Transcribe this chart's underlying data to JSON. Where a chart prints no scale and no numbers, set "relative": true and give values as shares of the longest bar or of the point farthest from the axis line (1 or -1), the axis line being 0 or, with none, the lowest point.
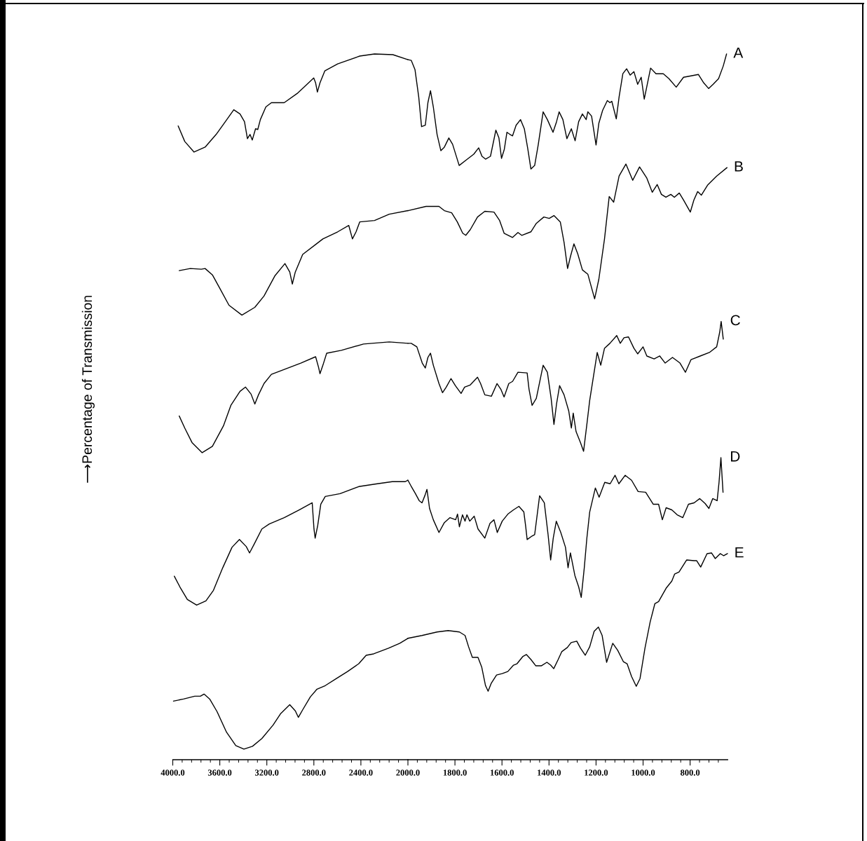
{
  "chart_data": [
    {
      "type": "line",
      "relative": true,
      "ylabel": "⟶Percentage of Transmission",
      "tick_labels": "x",
      "xlim": [
        4000,
        2000
      ],
      "xticks": [
        {
          "value": 4000,
          "label": "4000.0"
        },
        {
          "value": 3920,
          "label": null
        },
        {
          "value": 3840,
          "label": null
        },
        {
          "value": 3760,
          "label": null
        },
        {
          "value": 3680,
          "label": null
        },
        {
          "value": 3600,
          "label": "3600.0"
        },
        {
          "value": 3520,
          "label": null
        },
        {
          "value": 3440,
          "label": null
        },
        {
          "value": 3360,
          "label": null
        },
        {
          "value": 3280,
          "label": null
        },
        {
          "value": 3200,
          "label": "3200.0"
        },
        {
          "value": 3120,
          "label": null
        },
        {
          "value": 3040,
          "label": null
        },
        {
          "value": 2960,
          "label": null
        },
        {
          "value": 2880,
          "label": null
        },
        {
          "value": 2800,
          "label": "2800.0"
        },
        {
          "value": 2720,
          "label": null
        },
        {
          "value": 2640,
          "label": null
        },
        {
          "value": 2560,
          "label": null
        },
        {
          "value": 2480,
          "label": null
        },
        {
          "value": 2400,
          "label": "2400.0"
        },
        {
          "value": 2320,
          "label": null
        },
        {
          "value": 2240,
          "label": null
        },
        {
          "value": 2160,
          "label": null
        },
        {
          "value": 2080,
          "label": null
        }
      ],
      "series": [
        {
          "color": "#000000",
          "x": [
            3954,
            3898,
            3819,
            3725,
            3631,
            3553,
            3481,
            3428,
            3390,
            3365,
            3343,
            3324,
            3296,
            3277,
            3255,
            3208,
            3161,
            3052,
            2942,
            2801,
            2785,
            2770,
            2748,
            2707,
            2597,
            2410,
            2284,
            2128,
            2000
          ],
          "values": [
            0.898,
            0.876,
            0.861,
            0.868,
            0.886,
            0.904,
            0.921,
            0.915,
            0.904,
            0.88,
            0.886,
            0.878,
            0.894,
            0.893,
            0.907,
            0.925,
            0.931,
            0.931,
            0.944,
            0.966,
            0.959,
            0.946,
            0.959,
            0.976,
            0.986,
            0.997,
            1.0,
            0.999,
            0.992
          ]
        },
        {
          "color": "#000000",
          "x": [
            3945,
            3851,
            3757,
            3725,
            3663,
            3600,
            3522,
            3412,
            3302,
            3224,
            3130,
            3046,
            3005,
            2983,
            2958,
            2895,
            2785,
            2723,
            2597,
            2503,
            2472,
            2441,
            2410,
            2284,
            2159,
            2000
          ],
          "values": [
            0.693,
            0.696,
            0.695,
            0.696,
            0.687,
            0.668,
            0.644,
            0.63,
            0.641,
            0.657,
            0.686,
            0.703,
            0.691,
            0.674,
            0.691,
            0.716,
            0.73,
            0.738,
            0.748,
            0.757,
            0.738,
            0.748,
            0.762,
            0.764,
            0.773,
            0.778
          ]
        },
        {
          "color": "#000000",
          "x": [
            3945,
            3898,
            3835,
            3750,
            3663,
            3569,
            3506,
            3428,
            3381,
            3334,
            3302,
            3271,
            3224,
            3161,
            3036,
            2911,
            2785,
            2760,
            2748,
            2723,
            2691,
            2566,
            2378,
            2159,
            2000
          ],
          "values": [
            0.487,
            0.47,
            0.449,
            0.435,
            0.444,
            0.473,
            0.502,
            0.522,
            0.528,
            0.518,
            0.504,
            0.517,
            0.533,
            0.546,
            0.554,
            0.562,
            0.571,
            0.556,
            0.547,
            0.559,
            0.576,
            0.58,
            0.589,
            0.592,
            0.59
          ]
        },
        {
          "color": "#000000",
          "x": [
            3987,
            3940,
            3876,
            3797,
            3718,
            3654,
            3575,
            3496,
            3433,
            3375,
            3347,
            3306,
            3242,
            3179,
            3052,
            2925,
            2814,
            2799,
            2789,
            2767,
            2741,
            2703,
            2577,
            2418,
            2260,
            2133,
            2022,
            2000
          ],
          "values": [
            0.26,
            0.245,
            0.227,
            0.219,
            0.225,
            0.24,
            0.272,
            0.301,
            0.312,
            0.302,
            0.293,
            0.306,
            0.327,
            0.334,
            0.343,
            0.354,
            0.364,
            0.327,
            0.314,
            0.332,
            0.362,
            0.373,
            0.377,
            0.387,
            0.391,
            0.394,
            0.394,
            0.396
          ]
        },
        {
          "color": "#000000",
          "x": [
            3994,
            3908,
            3813,
            3765,
            3734,
            3686,
            3623,
            3543,
            3464,
            3395,
            3322,
            3242,
            3147,
            3084,
            3005,
            2957,
            2932,
            2894,
            2830,
            2773,
            2703,
            2608,
            2513,
            2418,
            2355,
            2291,
            2165,
            2069,
            2000
          ],
          "values": [
            0.083,
            0.086,
            0.09,
            0.09,
            0.093,
            0.086,
            0.068,
            0.039,
            0.02,
            0.015,
            0.019,
            0.03,
            0.049,
            0.065,
            0.078,
            0.069,
            0.06,
            0.071,
            0.089,
            0.1,
            0.105,
            0.115,
            0.125,
            0.136,
            0.148,
            0.15,
            0.158,
            0.165,
            0.172
          ]
        }
      ]
    },
    {
      "type": "line",
      "relative": true,
      "tick_labels": "x",
      "xlim": [
        2000,
        640
      ],
      "xticks": [
        {
          "value": 2000,
          "label": "2000.0"
        },
        {
          "value": 1960,
          "label": null
        },
        {
          "value": 1920,
          "label": null
        },
        {
          "value": 1880,
          "label": null
        },
        {
          "value": 1840,
          "label": null
        },
        {
          "value": 1800,
          "label": "1800.0"
        },
        {
          "value": 1760,
          "label": null
        },
        {
          "value": 1720,
          "label": null
        },
        {
          "value": 1680,
          "label": null
        },
        {
          "value": 1640,
          "label": null
        },
        {
          "value": 1600,
          "label": "1600.0"
        },
        {
          "value": 1560,
          "label": null
        },
        {
          "value": 1520,
          "label": null
        },
        {
          "value": 1480,
          "label": null
        },
        {
          "value": 1440,
          "label": null
        },
        {
          "value": 1400,
          "label": "1400.0"
        },
        {
          "value": 1360,
          "label": null
        },
        {
          "value": 1320,
          "label": null
        },
        {
          "value": 1280,
          "label": null
        },
        {
          "value": 1240,
          "label": null
        },
        {
          "value": 1200,
          "label": "1200.0"
        },
        {
          "value": 1160,
          "label": null
        },
        {
          "value": 1120,
          "label": null
        },
        {
          "value": 1080,
          "label": null
        },
        {
          "value": 1040,
          "label": null
        },
        {
          "value": 1000,
          "label": "1000.0"
        },
        {
          "value": 960,
          "label": null
        },
        {
          "value": 920,
          "label": null
        },
        {
          "value": 880,
          "label": null
        },
        {
          "value": 840,
          "label": null
        },
        {
          "value": 800,
          "label": "800.0"
        },
        {
          "value": 760,
          "label": null
        },
        {
          "value": 720,
          "label": null
        },
        {
          "value": 680,
          "label": null
        }
      ],
      "series": [
        {
          "name": "A",
          "color": "#000000",
          "x": [
            2000,
            1986,
            1970,
            1954,
            1942,
            1926,
            1915,
            1904,
            1892,
            1876,
            1860,
            1845,
            1826,
            1810,
            1782,
            1751,
            1720,
            1699,
            1685,
            1670,
            1649,
            1626,
            1613,
            1602,
            1590,
            1579,
            1566,
            1555,
            1540,
            1521,
            1505,
            1490,
            1477,
            1461,
            1446,
            1425,
            1407,
            1383,
            1368,
            1357,
            1341,
            1324,
            1305,
            1289,
            1274,
            1258,
            1242,
            1235,
            1219,
            1200,
            1188,
            1172,
            1152,
            1141,
            1133,
            1114,
            1102,
            1086,
            1070,
            1055,
            1039,
            1023,
            1008,
            995,
            984,
            968,
            945,
            914,
            890,
            859,
            828,
            796,
            765,
            742,
            721,
            702,
            679,
            659,
            645
          ],
          "values": [
            0.992,
            0.991,
            0.978,
            0.939,
            0.897,
            0.899,
            0.931,
            0.948,
            0.925,
            0.886,
            0.863,
            0.868,
            0.881,
            0.872,
            0.842,
            0.85,
            0.858,
            0.867,
            0.855,
            0.851,
            0.855,
            0.892,
            0.881,
            0.852,
            0.865,
            0.889,
            0.886,
            0.884,
            0.899,
            0.907,
            0.894,
            0.865,
            0.837,
            0.842,
            0.871,
            0.918,
            0.907,
            0.889,
            0.904,
            0.918,
            0.907,
            0.88,
            0.894,
            0.877,
            0.904,
            0.915,
            0.907,
            0.918,
            0.912,
            0.871,
            0.902,
            0.92,
            0.934,
            0.931,
            0.933,
            0.908,
            0.939,
            0.972,
            0.979,
            0.97,
            0.975,
            0.957,
            0.967,
            0.936,
            0.954,
            0.98,
            0.972,
            0.972,
            0.965,
            0.953,
            0.967,
            0.969,
            0.971,
            0.959,
            0.951,
            0.957,
            0.965,
            0.983,
            1.0
          ]
        },
        {
          "name": "B",
          "color": "#000000",
          "x": [
            2000,
            1923,
            1868,
            1845,
            1814,
            1790,
            1767,
            1754,
            1735,
            1704,
            1673,
            1634,
            1610,
            1591,
            1555,
            1532,
            1516,
            1477,
            1454,
            1422,
            1399,
            1379,
            1352,
            1336,
            1321,
            1308,
            1294,
            1278,
            1258,
            1235,
            1206,
            1188,
            1164,
            1144,
            1125,
            1102,
            1073,
            1044,
            1015,
            984,
            961,
            940,
            922,
            903,
            882,
            867,
            846,
            828,
            799,
            784,
            768,
            752,
            726,
            687,
            643
          ],
          "values": [
            0.778,
            0.784,
            0.784,
            0.778,
            0.775,
            0.762,
            0.746,
            0.743,
            0.751,
            0.769,
            0.777,
            0.776,
            0.764,
            0.746,
            0.74,
            0.747,
            0.743,
            0.748,
            0.76,
            0.769,
            0.767,
            0.771,
            0.762,
            0.733,
            0.696,
            0.714,
            0.731,
            0.717,
            0.694,
            0.688,
            0.653,
            0.681,
            0.738,
            0.798,
            0.79,
            0.827,
            0.844,
            0.821,
            0.84,
            0.824,
            0.804,
            0.815,
            0.801,
            0.797,
            0.801,
            0.797,
            0.803,
            0.793,
            0.776,
            0.793,
            0.805,
            0.8,
            0.814,
            0.827,
            0.839
          ]
        },
        {
          "name": "C",
          "color": "#000000",
          "x": [
            2000,
            1986,
            1962,
            1939,
            1926,
            1915,
            1904,
            1892,
            1868,
            1853,
            1837,
            1817,
            1798,
            1774,
            1759,
            1735,
            1704,
            1691,
            1673,
            1645,
            1621,
            1605,
            1591,
            1571,
            1555,
            1532,
            1493,
            1485,
            1472,
            1454,
            1425,
            1407,
            1391,
            1379,
            1368,
            1355,
            1336,
            1316,
            1305,
            1297,
            1285,
            1266,
            1253,
            1238,
            1227,
            1211,
            1195,
            1180,
            1164,
            1141,
            1112,
            1097,
            1081,
            1062,
            1039,
            1023,
            1000,
            984,
            953,
            929,
            906,
            875,
            843,
            820,
            796,
            757,
            718,
            687,
            674,
            668,
            659
          ],
          "values": [
            0.59,
            0.59,
            0.585,
            0.562,
            0.555,
            0.57,
            0.576,
            0.559,
            0.533,
            0.52,
            0.528,
            0.54,
            0.53,
            0.519,
            0.528,
            0.531,
            0.542,
            0.533,
            0.517,
            0.515,
            0.533,
            0.525,
            0.514,
            0.533,
            0.536,
            0.549,
            0.548,
            0.525,
            0.502,
            0.512,
            0.559,
            0.549,
            0.512,
            0.475,
            0.504,
            0.53,
            0.517,
            0.494,
            0.47,
            0.491,
            0.465,
            0.449,
            0.437,
            0.478,
            0.509,
            0.543,
            0.577,
            0.559,
            0.583,
            0.59,
            0.601,
            0.59,
            0.598,
            0.599,
            0.583,
            0.575,
            0.585,
            0.572,
            0.568,
            0.572,
            0.562,
            0.57,
            0.562,
            0.549,
            0.567,
            0.572,
            0.577,
            0.585,
            0.606,
            0.621,
            0.596
          ]
        },
        {
          "name": "D",
          "color": "#000000",
          "x": [
            2000,
            1987,
            1968,
            1952,
            1940,
            1927,
            1919,
            1908,
            1892,
            1868,
            1845,
            1821,
            1797,
            1789,
            1781,
            1768,
            1757,
            1749,
            1737,
            1718,
            1702,
            1673,
            1651,
            1634,
            1620,
            1599,
            1575,
            1551,
            1528,
            1507,
            1499,
            1493,
            1472,
            1461,
            1440,
            1420,
            1404,
            1393,
            1382,
            1369,
            1350,
            1330,
            1319,
            1309,
            1290,
            1274,
            1263,
            1250,
            1239,
            1227,
            1203,
            1187,
            1163,
            1140,
            1119,
            1103,
            1076,
            1049,
            1021,
            989,
            957,
            934,
            918,
            902,
            878,
            855,
            831,
            807,
            783,
            759,
            736,
            720,
            704,
            685,
            677,
            669,
            660
          ],
          "values": [
            0.396,
            0.388,
            0.377,
            0.367,
            0.364,
            0.375,
            0.383,
            0.356,
            0.34,
            0.322,
            0.336,
            0.343,
            0.34,
            0.348,
            0.33,
            0.347,
            0.338,
            0.347,
            0.338,
            0.345,
            0.327,
            0.314,
            0.335,
            0.34,
            0.322,
            0.338,
            0.348,
            0.354,
            0.359,
            0.351,
            0.33,
            0.312,
            0.317,
            0.319,
            0.374,
            0.364,
            0.319,
            0.283,
            0.314,
            0.338,
            0.322,
            0.301,
            0.272,
            0.293,
            0.261,
            0.245,
            0.23,
            0.272,
            0.314,
            0.351,
            0.385,
            0.372,
            0.393,
            0.391,
            0.403,
            0.391,
            0.403,
            0.396,
            0.38,
            0.379,
            0.362,
            0.362,
            0.34,
            0.357,
            0.354,
            0.347,
            0.343,
            0.362,
            0.364,
            0.37,
            0.363,
            0.356,
            0.37,
            0.367,
            0.393,
            0.428,
            0.379
          ]
        },
        {
          "name": "E",
          "color": "#000000",
          "x": [
            2000,
            1940,
            1876,
            1829,
            1781,
            1757,
            1742,
            1726,
            1702,
            1686,
            1670,
            1659,
            1646,
            1623,
            1599,
            1575,
            1551,
            1536,
            1512,
            1496,
            1477,
            1456,
            1433,
            1409,
            1393,
            1380,
            1361,
            1346,
            1322,
            1306,
            1282,
            1266,
            1246,
            1227,
            1208,
            1190,
            1174,
            1155,
            1129,
            1108,
            1084,
            1068,
            1049,
            1029,
            1013,
            992,
            970,
            950,
            934,
            902,
            878,
            866,
            847,
            815,
            783,
            772,
            755,
            728,
            709,
            693,
            672,
            657,
            641
          ],
          "values": [
            0.172,
            0.176,
            0.181,
            0.183,
            0.181,
            0.176,
            0.16,
            0.145,
            0.145,
            0.131,
            0.105,
            0.097,
            0.108,
            0.12,
            0.122,
            0.125,
            0.134,
            0.136,
            0.146,
            0.149,
            0.142,
            0.133,
            0.133,
            0.138,
            0.134,
            0.129,
            0.142,
            0.153,
            0.159,
            0.166,
            0.168,
            0.158,
            0.148,
            0.16,
            0.182,
            0.188,
            0.176,
            0.138,
            0.165,
            0.155,
            0.139,
            0.136,
            0.118,
            0.104,
            0.115,
            0.158,
            0.195,
            0.221,
            0.224,
            0.243,
            0.253,
            0.263,
            0.266,
            0.283,
            0.282,
            0.282,
            0.273,
            0.292,
            0.293,
            0.285,
            0.292,
            0.289,
            0.292
          ]
        }
      ]
    }
  ]
}
